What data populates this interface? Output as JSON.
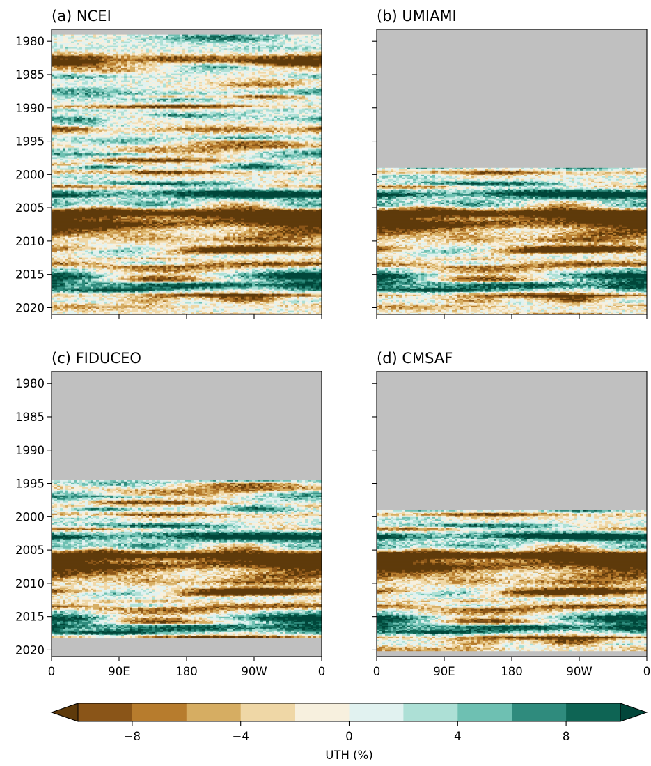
{
  "chart_data": [
    {
      "type": "heatmap",
      "title": "(a)  NCEI",
      "x_tick_labels": [
        "0",
        "90E",
        "180",
        "90W",
        "0"
      ],
      "y_tick_labels": [
        "1980",
        "1985",
        "1990",
        "1995",
        "2000",
        "2005",
        "2010",
        "2015",
        "2020"
      ],
      "y_ticks": [
        1980,
        1985,
        1990,
        1995,
        2000,
        2005,
        2010,
        2015,
        2020
      ],
      "ylim": [
        2021,
        1978.2
      ],
      "xlim": [
        0,
        360
      ],
      "data_years": [
        1979,
        2021
      ],
      "show_x_tick_labels": false,
      "show_y_tick_labels": true,
      "missing_color": "#c0c0c0"
    },
    {
      "type": "heatmap",
      "title": "(b)  UMIAMI",
      "x_tick_labels": [
        "0",
        "90E",
        "180",
        "90W",
        "0"
      ],
      "y_tick_labels": [
        "1980",
        "1985",
        "1990",
        "1995",
        "2000",
        "2005",
        "2010",
        "2015",
        "2020"
      ],
      "y_ticks": [
        1980,
        1985,
        1990,
        1995,
        2000,
        2005,
        2010,
        2015,
        2020
      ],
      "ylim": [
        2021,
        1978.2
      ],
      "xlim": [
        0,
        360
      ],
      "data_years": [
        1999,
        2021
      ],
      "show_x_tick_labels": false,
      "show_y_tick_labels": false,
      "missing_color": "#c0c0c0"
    },
    {
      "type": "heatmap",
      "title": "(c)  FIDUCEO",
      "x_tick_labels": [
        "0",
        "90E",
        "180",
        "90W",
        "0"
      ],
      "y_tick_labels": [
        "1980",
        "1985",
        "1990",
        "1995",
        "2000",
        "2005",
        "2010",
        "2015",
        "2020"
      ],
      "y_ticks": [
        1980,
        1985,
        1990,
        1995,
        2000,
        2005,
        2010,
        2015,
        2020
      ],
      "ylim": [
        2021,
        1978.2
      ],
      "xlim": [
        0,
        360
      ],
      "data_years": [
        1994.5,
        2018
      ],
      "show_x_tick_labels": true,
      "show_y_tick_labels": true,
      "missing_color": "#c0c0c0"
    },
    {
      "type": "heatmap",
      "title": "(d)  CMSAF",
      "x_tick_labels": [
        "0",
        "90E",
        "180",
        "90W",
        "0"
      ],
      "y_tick_labels": [
        "1980",
        "1985",
        "1990",
        "1995",
        "2000",
        "2005",
        "2010",
        "2015",
        "2020"
      ],
      "y_ticks": [
        1980,
        1985,
        1990,
        1995,
        2000,
        2005,
        2010,
        2015,
        2020
      ],
      "ylim": [
        2021,
        1978.2
      ],
      "xlim": [
        0,
        360
      ],
      "data_years": [
        1999,
        2020
      ],
      "show_x_tick_labels": true,
      "show_y_tick_labels": false,
      "missing_color": "#c0c0c0"
    }
  ],
  "colorbar": {
    "label": "UTH (%)",
    "ticks": [
      -8,
      -4,
      0,
      4,
      8
    ],
    "tick_labels": [
      "−8",
      "−4",
      "0",
      "4",
      "8"
    ],
    "boundaries": [
      -10,
      -8,
      -6,
      -4,
      -2,
      0,
      2,
      4,
      6,
      8,
      10
    ],
    "colors": [
      "#8a5518",
      "#b77c2d",
      "#d6ad62",
      "#efd7a6",
      "#f7f0de",
      "#e1f2f0",
      "#ade0d6",
      "#6ec0b2",
      "#2f8b7d",
      "#0e6454"
    ],
    "under_color": "#5e3a0b",
    "over_color": "#01463a",
    "extend": "both"
  }
}
